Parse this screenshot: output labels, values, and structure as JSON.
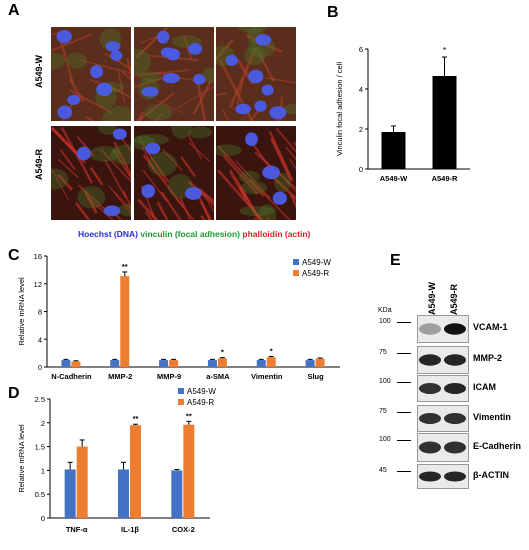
{
  "panels": {
    "A": {
      "letter": "A",
      "row_labels": [
        "A549-W",
        "A549-R"
      ],
      "stain_legend": [
        {
          "text": "Hoechst (DNA)",
          "color": "#2b2bd6"
        },
        {
          "text": "vinculin (focal adhesion)",
          "color": "#1a9a2a"
        },
        {
          "text": "phalloidin (actin)",
          "color": "#e02020"
        }
      ]
    },
    "B": {
      "letter": "B"
    },
    "C": {
      "letter": "C"
    },
    "D": {
      "letter": "D"
    },
    "E": {
      "letter": "E",
      "lanes": [
        "A549-W",
        "A549-R"
      ],
      "unit": "KDa",
      "blots": [
        {
          "name": "VCAM-1",
          "marker": "100"
        },
        {
          "name": "MMP-2",
          "marker": "75"
        },
        {
          "name": "ICAM",
          "marker": "100"
        },
        {
          "name": "Vimentin",
          "marker": "75"
        },
        {
          "name": "E-Cadherin",
          "marker": "100"
        },
        {
          "name": "β-ACTIN",
          "marker": "45"
        }
      ]
    }
  },
  "colors": {
    "w": "#4472c4",
    "r": "#ed7d31",
    "black_bar": "#000000"
  },
  "chart_data": [
    {
      "id": "B",
      "type": "bar",
      "categories": [
        "A549-W",
        "A549-R"
      ],
      "values": [
        1.85,
        4.65
      ],
      "errors": [
        0.3,
        0.95
      ],
      "significance": [
        "",
        "*"
      ],
      "ylabel": "Vinculin focal adhesion / cell",
      "ylim": [
        0,
        6
      ],
      "yticks": [
        "0",
        "2",
        "4",
        "6"
      ]
    },
    {
      "id": "C",
      "type": "bar",
      "categories": [
        "N-Cadherin",
        "MMP-2",
        "MMP-9",
        "a-SMA",
        "Vimentin",
        "Slug"
      ],
      "series": [
        {
          "name": "A549-W",
          "values": [
            1.0,
            1.0,
            1.0,
            1.0,
            1.0,
            1.0
          ],
          "errors": [
            0.1,
            0.1,
            0.1,
            0.1,
            0.1,
            0.1
          ]
        },
        {
          "name": "A549-R",
          "values": [
            0.8,
            13.1,
            1.0,
            1.25,
            1.4,
            1.2
          ],
          "errors": [
            0.1,
            0.6,
            0.1,
            0.1,
            0.12,
            0.1
          ]
        }
      ],
      "significance": [
        "",
        "**",
        "",
        "*",
        "*",
        ""
      ],
      "ylabel": "Relative mRNA level",
      "ylim": [
        0,
        16
      ],
      "yticks": [
        "0",
        "4",
        "8",
        "12",
        "16"
      ]
    },
    {
      "id": "D",
      "type": "bar",
      "categories": [
        "TNF-α",
        "IL-1β",
        "COX-2"
      ],
      "series": [
        {
          "name": "A549-W",
          "values": [
            1.02,
            1.02,
            1.0
          ],
          "errors": [
            0.15,
            0.15,
            0.02
          ]
        },
        {
          "name": "A549-R",
          "values": [
            1.5,
            1.95,
            1.96
          ],
          "errors": [
            0.14,
            0.02,
            0.07
          ]
        }
      ],
      "significance": [
        "",
        "**",
        "**"
      ],
      "ylabel": "Relative mRNA level",
      "ylim": [
        0,
        2.5
      ],
      "yticks": [
        "0",
        "0.5",
        "1",
        "1.5",
        "2",
        "2.5"
      ]
    }
  ]
}
